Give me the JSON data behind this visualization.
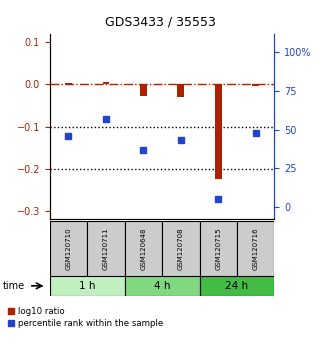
{
  "title": "GDS3433 / 35553",
  "samples": [
    "GSM120710",
    "GSM120711",
    "GSM120648",
    "GSM120708",
    "GSM120715",
    "GSM120716"
  ],
  "time_groups": [
    {
      "label": "1 h",
      "cols": [
        0,
        1
      ],
      "color": "#c0f0c0"
    },
    {
      "label": "4 h",
      "cols": [
        2,
        3
      ],
      "color": "#80d880"
    },
    {
      "label": "24 h",
      "cols": [
        4,
        5
      ],
      "color": "#44bb44"
    }
  ],
  "log10_ratio": [
    0.002,
    0.005,
    -0.028,
    -0.03,
    -0.225,
    -0.005
  ],
  "percentile_rank_pct": [
    46,
    57,
    37,
    43,
    5,
    48
  ],
  "red_color": "#aa2200",
  "blue_color": "#2244cc",
  "ylim_left": [
    -0.32,
    0.12
  ],
  "ylim_right": [
    -8,
    112
  ],
  "right_ticks": [
    0,
    25,
    50,
    75,
    100
  ],
  "right_tick_labels": [
    "0",
    "25",
    "50",
    "75",
    "100%"
  ],
  "left_ticks": [
    -0.3,
    -0.2,
    -0.1,
    0.0,
    0.1
  ],
  "dotted_lines": [
    -0.1,
    -0.2
  ],
  "bar_width": 0.18,
  "marker_size": 5,
  "sample_box_color": "#cccccc",
  "legend_red_label": "log10 ratio",
  "legend_blue_label": "percentile rank within the sample"
}
